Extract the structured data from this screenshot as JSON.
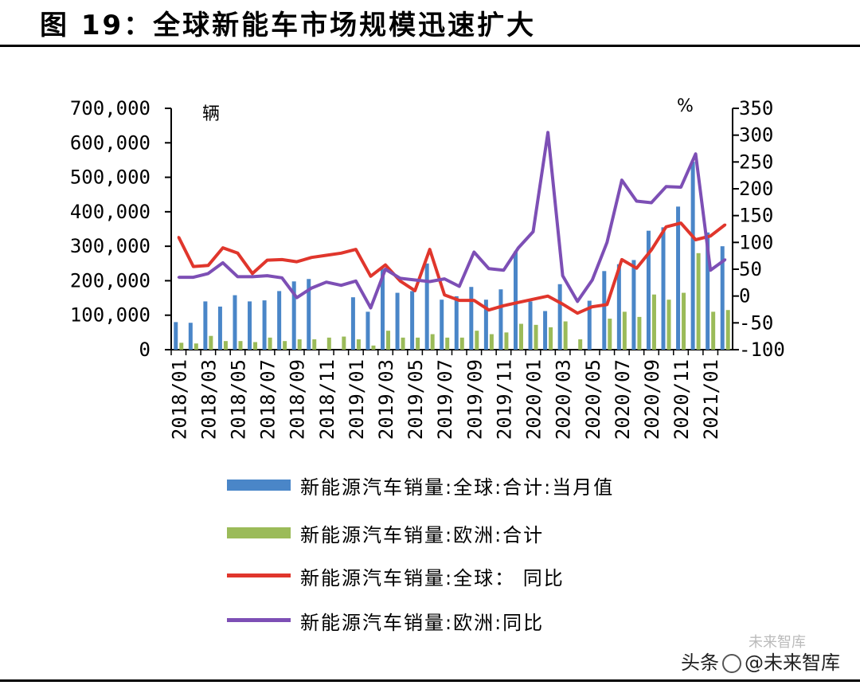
{
  "title": "图 19：全球新能车市场规模迅速扩大",
  "watermark": {
    "source": "头条",
    "handle": "@未来智库",
    "faded": "未来智库"
  },
  "colors": {
    "global_bar": "#4a86c8",
    "europe_bar": "#9bbb59",
    "global_yoy": "#e0362c",
    "europe_yoy": "#7d4fb5"
  },
  "chart_data": {
    "type": "bar",
    "left_axis": {
      "unit": "辆",
      "ylim": [
        0,
        700000
      ],
      "ticks": [
        "0",
        "100,000",
        "200,000",
        "300,000",
        "400,000",
        "500,000",
        "600,000",
        "700,000"
      ]
    },
    "right_axis": {
      "unit": "%",
      "ylim": [
        -100,
        350
      ],
      "ticks": [
        "-100",
        "-50",
        "0",
        "50",
        "100",
        "150",
        "200",
        "250",
        "300",
        "350"
      ]
    },
    "x_tick_labels": [
      "2018/01",
      "2018/03",
      "2018/05",
      "2018/07",
      "2018/09",
      "2018/11",
      "2019/01",
      "2019/03",
      "2019/05",
      "2019/07",
      "2019/09",
      "2019/11",
      "2020/01",
      "2020/03",
      "2020/05",
      "2020/07",
      "2020/09",
      "2020/11",
      "2021/01"
    ],
    "x": [
      "2018/01",
      "2018/02",
      "2018/03",
      "2018/04",
      "2018/05",
      "2018/06",
      "2018/07",
      "2018/08",
      "2018/09",
      "2018/10",
      "2018/11",
      "2018/12",
      "2019/01",
      "2019/02",
      "2019/03",
      "2019/04",
      "2019/05",
      "2019/06",
      "2019/07",
      "2019/08",
      "2019/09",
      "2019/10",
      "2019/11",
      "2019/12",
      "2020/01",
      "2020/02",
      "2020/03",
      "2020/04",
      "2020/05",
      "2020/06",
      "2020/07",
      "2020/08",
      "2020/09",
      "2020/10",
      "2020/11",
      "2020/12",
      "2021/01",
      "2021/02"
    ],
    "series": [
      {
        "name": "新能源汽车销量:全球:合计:当月值",
        "type": "bar",
        "axis": "left",
        "values": [
          80000,
          78000,
          140000,
          125000,
          158000,
          140000,
          143000,
          170000,
          198000,
          205000,
          null,
          null,
          152000,
          110000,
          235000,
          165000,
          170000,
          250000,
          145000,
          155000,
          182000,
          145000,
          175000,
          285000,
          140000,
          112000,
          190000,
          null,
          142000,
          228000,
          248000,
          260000,
          345000,
          355000,
          415000,
          545000,
          340000,
          300000
        ]
      },
      {
        "name": "新能源汽车销量:欧洲:合计",
        "type": "bar",
        "axis": "left",
        "values": [
          20000,
          18000,
          40000,
          25000,
          25000,
          22000,
          35000,
          25000,
          30000,
          30000,
          35000,
          38000,
          30000,
          12000,
          55000,
          35000,
          35000,
          45000,
          35000,
          35000,
          55000,
          45000,
          50000,
          75000,
          72000,
          65000,
          82000,
          30000,
          null,
          90000,
          110000,
          95000,
          160000,
          145000,
          165000,
          280000,
          110000,
          115000
        ]
      },
      {
        "name": "新能源汽车销量:全球：同比",
        "type": "line",
        "axis": "right",
        "values": [
          110,
          55,
          57,
          90,
          80,
          42,
          67,
          68,
          64,
          72,
          76,
          80,
          87,
          37,
          58,
          28,
          10,
          87,
          2,
          -8,
          -8,
          -26,
          -18,
          -12,
          -6,
          0,
          -15,
          -32,
          -20,
          -16,
          68,
          52,
          86,
          129,
          136,
          105,
          112,
          133
        ]
      },
      {
        "name": "新能源汽车销量:欧洲:同比",
        "type": "line",
        "axis": "right",
        "values": [
          35,
          35,
          42,
          62,
          36,
          36,
          38,
          34,
          -3,
          15,
          26,
          20,
          28,
          -22,
          50,
          33,
          30,
          27,
          32,
          18,
          82,
          51,
          48,
          90,
          120,
          305,
          38,
          -10,
          30,
          100,
          216,
          177,
          174,
          204,
          203,
          265,
          48,
          68
        ]
      }
    ]
  },
  "legend": [
    {
      "label": "新能源汽车销量:全球:合计:当月值",
      "kind": "bar"
    },
    {
      "label": "新能源汽车销量:欧洲:合计",
      "kind": "bar"
    },
    {
      "label": "新能源汽车销量:全球： 同比",
      "kind": "line"
    },
    {
      "label": "新能源汽车销量:欧洲:同比",
      "kind": "line"
    }
  ]
}
